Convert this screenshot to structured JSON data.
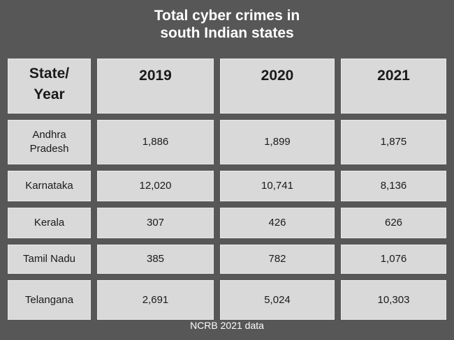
{
  "title_line1": "Total cyber crimes in",
  "title_line2": "south Indian states",
  "source": "NCRB 2021 data",
  "colors": {
    "background": "#575757",
    "cell": "#d9d9d9",
    "title": "#ffffff"
  },
  "header": {
    "state_line1": "State/",
    "state_line2": "Year",
    "years": [
      "2019",
      "2020",
      "2021"
    ]
  },
  "rows": [
    {
      "state": "Andhra Pradesh",
      "state_lines": [
        "Andhra",
        "Pradesh"
      ],
      "values": [
        "1,886",
        "1,899",
        "1,875"
      ]
    },
    {
      "state": "Karnataka",
      "state_lines": [
        "Karnataka"
      ],
      "values": [
        "12,020",
        "10,741",
        "8,136"
      ]
    },
    {
      "state": "Kerala",
      "state_lines": [
        "Kerala"
      ],
      "values": [
        "307",
        "426",
        "626"
      ]
    },
    {
      "state": "Tamil Nadu",
      "state_lines": [
        "Tamil Nadu"
      ],
      "values": [
        "385",
        "782",
        "1,076"
      ]
    },
    {
      "state": "Telangana",
      "state_lines": [
        "Telangana"
      ],
      "values": [
        "2,691",
        "5,024",
        "10,303"
      ]
    }
  ],
  "chart_data": {
    "type": "table",
    "title": "Total cyber crimes in south Indian states",
    "columns": [
      "State/ Year",
      "2019",
      "2020",
      "2021"
    ],
    "rows": [
      [
        "Andhra Pradesh",
        1886,
        1899,
        1875
      ],
      [
        "Karnataka",
        12020,
        10741,
        8136
      ],
      [
        "Kerala",
        307,
        426,
        626
      ],
      [
        "Tamil Nadu",
        385,
        782,
        1076
      ],
      [
        "Telangana",
        2691,
        5024,
        10303
      ]
    ],
    "annotations": [
      "NCRB 2021 data"
    ]
  }
}
